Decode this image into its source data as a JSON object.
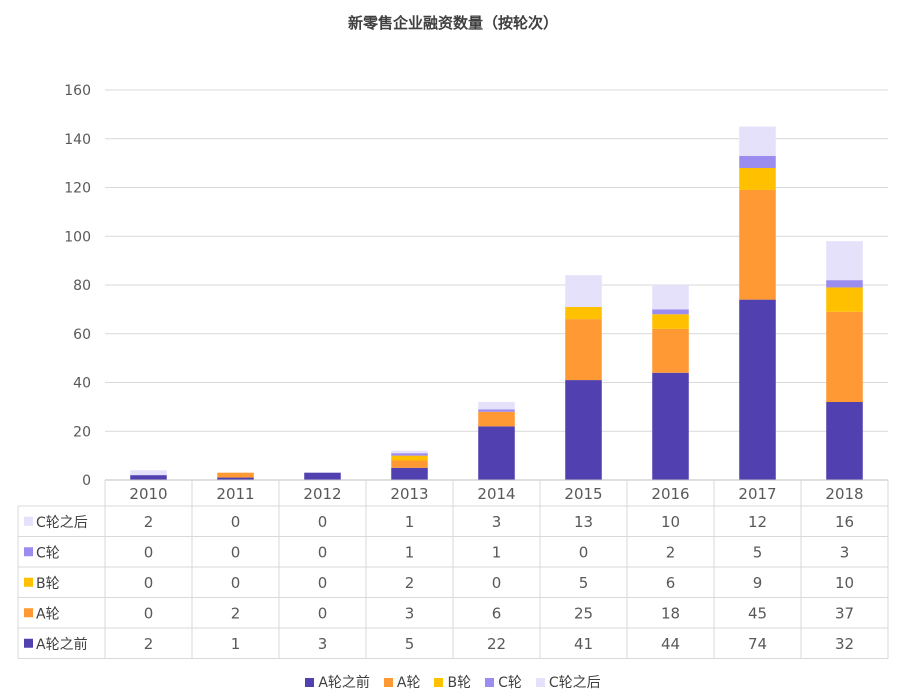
{
  "chart_data": {
    "type": "bar",
    "stacked": true,
    "title": "新零售企业融资数量（按轮次）",
    "categories": [
      "2010",
      "2011",
      "2012",
      "2013",
      "2014",
      "2015",
      "2016",
      "2017",
      "2018"
    ],
    "ylim": [
      0,
      160
    ],
    "yticks": [
      "0",
      "20",
      "40",
      "60",
      "80",
      "100",
      "120",
      "140",
      "160"
    ],
    "grid": true,
    "legend_position": "bottom",
    "data_table": true,
    "series": [
      {
        "name": "A轮之前",
        "color": "#5040B0",
        "values": [
          2,
          1,
          3,
          5,
          22,
          41,
          44,
          74,
          32
        ]
      },
      {
        "name": "A轮",
        "color": "#FF9933",
        "values": [
          0,
          2,
          0,
          3,
          6,
          25,
          18,
          45,
          37
        ]
      },
      {
        "name": "B轮",
        "color": "#FFC000",
        "values": [
          0,
          0,
          0,
          2,
          0,
          5,
          6,
          9,
          10
        ]
      },
      {
        "name": "C轮",
        "color": "#9B8CF0",
        "values": [
          0,
          0,
          0,
          1,
          1,
          0,
          2,
          5,
          3
        ]
      },
      {
        "name": "C轮之后",
        "color": "#E6E1FA",
        "values": [
          2,
          0,
          0,
          1,
          3,
          13,
          10,
          12,
          16
        ]
      }
    ]
  }
}
